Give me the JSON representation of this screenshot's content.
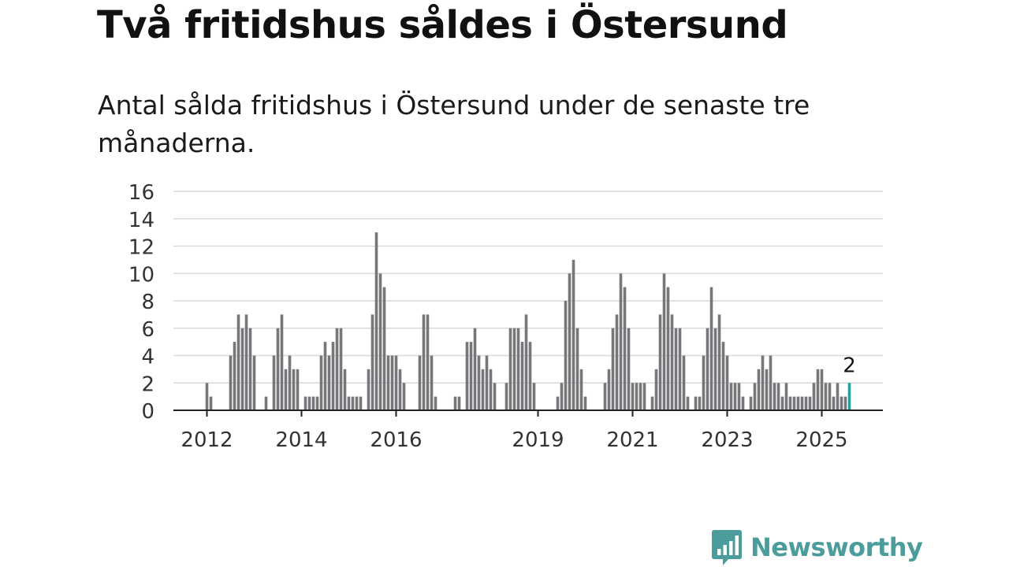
{
  "header": {
    "title": "Två fritidshus såldes i Östersund",
    "subtitle": "Antal sålda fritidshus i Östersund under de senaste tre månaderna."
  },
  "brand": {
    "name": "Newsworthy",
    "icon": "newsworthy-logo-icon",
    "color": "#4a9d9a"
  },
  "chart_data": {
    "type": "bar",
    "title": "Två fritidshus såldes i Östersund",
    "subtitle": "Antal sålda fritidshus i Östersund under de senaste tre månaderna.",
    "xlabel": "",
    "ylabel": "",
    "ylim": [
      0,
      16
    ],
    "yticks": [
      0,
      2,
      4,
      6,
      8,
      10,
      12,
      14,
      16
    ],
    "grid": true,
    "legend": "none",
    "x_start": "2011-01",
    "x_step": "month",
    "xticks": [
      {
        "label": "2012",
        "index": 12
      },
      {
        "label": "2014",
        "index": 36
      },
      {
        "label": "2016",
        "index": 60
      },
      {
        "label": "2019",
        "index": 96
      },
      {
        "label": "2021",
        "index": 120
      },
      {
        "label": "2023",
        "index": 144
      },
      {
        "label": "2025",
        "index": 168
      }
    ],
    "bar_color": "#77767b",
    "highlight_color": "#2a9d96",
    "highlight_label": "2",
    "values": [
      0,
      0,
      0,
      0,
      0,
      0,
      0,
      0,
      0,
      0,
      0,
      0,
      2,
      1,
      0,
      0,
      0,
      0,
      4,
      5,
      7,
      6,
      7,
      6,
      4,
      0,
      0,
      1,
      0,
      4,
      6,
      7,
      3,
      4,
      3,
      3,
      0,
      1,
      1,
      1,
      1,
      4,
      5,
      4,
      5,
      6,
      6,
      3,
      1,
      1,
      1,
      1,
      0,
      3,
      7,
      13,
      10,
      9,
      4,
      4,
      4,
      3,
      2,
      0,
      0,
      0,
      4,
      7,
      7,
      4,
      1,
      0,
      0,
      0,
      0,
      1,
      1,
      0,
      5,
      5,
      6,
      4,
      3,
      4,
      3,
      2,
      0,
      0,
      2,
      6,
      6,
      6,
      5,
      7,
      5,
      2,
      0,
      0,
      0,
      0,
      0,
      1,
      2,
      8,
      10,
      11,
      6,
      3,
      1,
      0,
      0,
      0,
      0,
      2,
      3,
      6,
      7,
      10,
      9,
      6,
      2,
      2,
      2,
      2,
      0,
      1,
      3,
      7,
      10,
      9,
      7,
      6,
      6,
      4,
      1,
      0,
      1,
      1,
      4,
      6,
      9,
      6,
      7,
      5,
      4,
      2,
      2,
      2,
      1,
      0,
      1,
      2,
      3,
      4,
      3,
      4,
      2,
      2,
      1,
      2,
      1,
      1,
      1,
      1,
      1,
      1,
      2,
      3,
      3,
      2,
      2,
      1,
      2,
      1,
      1,
      2
    ]
  }
}
